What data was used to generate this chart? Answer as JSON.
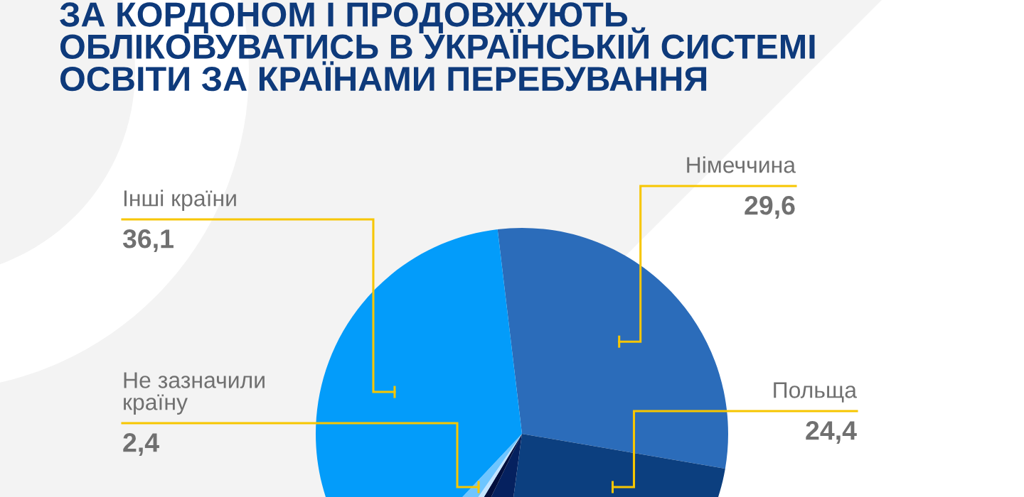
{
  "chart_data": {
    "type": "pie",
    "title": "ЗА КОРДОНОМ І ПРОДОВЖУЮТЬ ОБЛІКОВУВАТИСЬ В УКРАЇНСЬКІЙ СИСТЕМІ ОСВІТИ ЗА КРАЇНАМИ ПЕРЕБУВАННЯ",
    "categories": [
      "Німеччина",
      "Польща",
      null,
      null,
      null,
      "Не зазначили країну",
      "Інші країни"
    ],
    "values": [
      29.6,
      24.4,
      5.1,
      1.4,
      1.0,
      2.4,
      36.1
    ],
    "colors": [
      "#2b6cba",
      "#0c3f7f",
      "#05215f",
      "#020f3d",
      "#c4e4ff",
      "#6ec5ff",
      "#039cfa"
    ],
    "value_labels": [
      "29,6",
      "24,4",
      null,
      null,
      null,
      "2,4",
      "36,1"
    ]
  }
}
